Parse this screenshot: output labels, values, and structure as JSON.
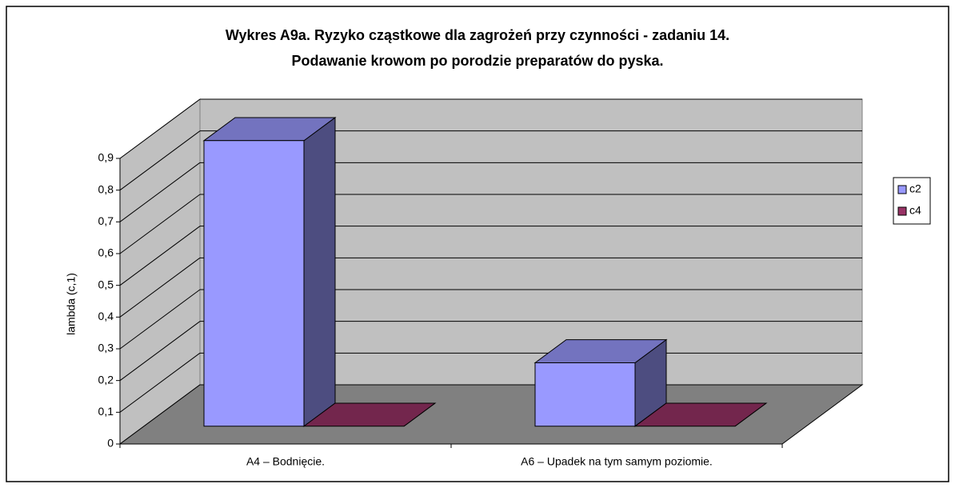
{
  "chart_data": {
    "type": "bar3d",
    "title": [
      "Wykres A9a. Ryzyko cząstkowe dla zagrożeń przy czynności - zadaniu 14.",
      "Podawanie krowom po porodzie preparatów do pyska."
    ],
    "y_label": "lambda (c,1)",
    "categories": [
      "A4 – Bodnięcie.",
      "A6 – Upadek na tym samym poziomie."
    ],
    "series": [
      {
        "name": "c2",
        "color": "#9999ff",
        "values": [
          0.9,
          0.2
        ]
      },
      {
        "name": "c4",
        "color": "#993366",
        "values": [
          0,
          0
        ]
      }
    ],
    "ylim": [
      0,
      0.9
    ],
    "yticks": [
      0,
      {
        "value": 0.1,
        "label": "0,1"
      },
      {
        "value": 0.2,
        "label": "0,2"
      },
      {
        "value": 0.3,
        "label": "0,3"
      },
      {
        "value": 0.4,
        "label": "0,4"
      },
      {
        "value": 0.5,
        "label": "0,5"
      },
      {
        "value": 0.6,
        "label": "0,6"
      },
      {
        "value": 0.7,
        "label": "0,7"
      },
      {
        "value": 0.8,
        "label": "0,8"
      },
      {
        "value": 0.9,
        "label": "0,9"
      }
    ],
    "grid": true,
    "legend": "right"
  }
}
